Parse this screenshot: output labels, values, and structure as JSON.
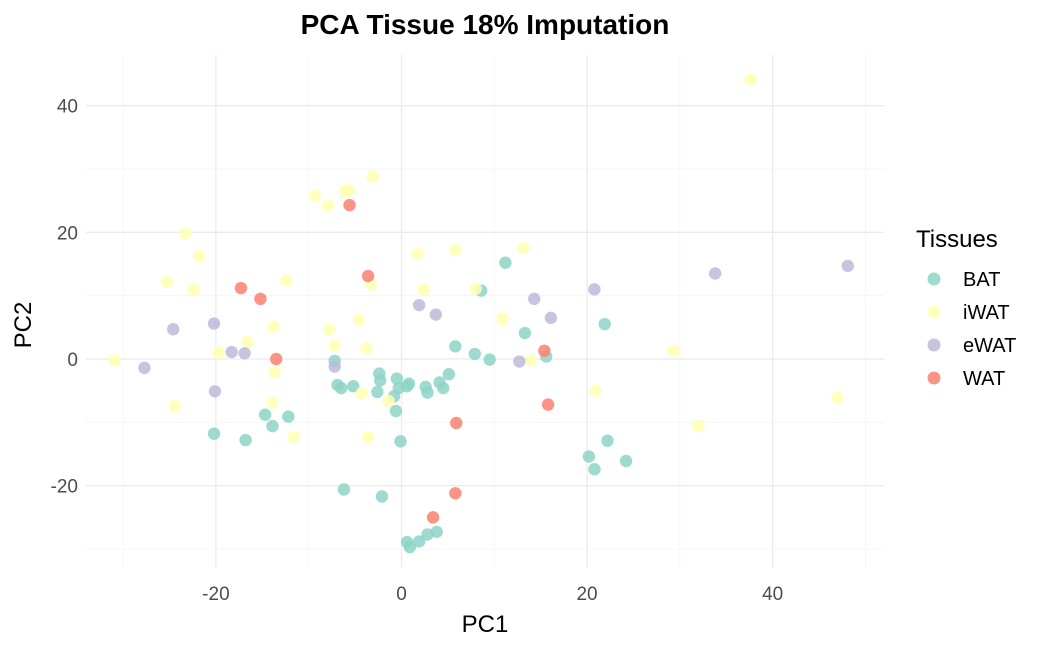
{
  "chart_data": {
    "type": "scatter",
    "title": "PCA Tissue 18% Imputation",
    "xlabel": "PC1",
    "ylabel": "PC2",
    "xlim": [
      -34,
      52
    ],
    "ylim": [
      -33,
      48
    ],
    "x_ticks": [
      -20,
      0,
      20,
      40
    ],
    "y_ticks": [
      -20,
      0,
      20,
      40
    ],
    "grid": true,
    "legend": {
      "title": "Tissues",
      "position": "right"
    },
    "series": [
      {
        "name": "BAT",
        "color": "#8dd3c7",
        "points": [
          [
            -20.2,
            -11.8
          ],
          [
            -16.8,
            -12.8
          ],
          [
            -14.7,
            -8.8
          ],
          [
            -13.9,
            -10.6
          ],
          [
            -12.2,
            -9.1
          ],
          [
            -7.2,
            -0.3
          ],
          [
            -6.9,
            -4.1
          ],
          [
            -6.5,
            -4.6
          ],
          [
            -5.2,
            -4.3
          ],
          [
            -2.4,
            -2.3
          ],
          [
            -2.3,
            -3.4
          ],
          [
            -2.6,
            -5.2
          ],
          [
            -0.8,
            -5.9
          ],
          [
            -0.6,
            -8.2
          ],
          [
            -0.5,
            -3.1
          ],
          [
            -0.3,
            -4.6
          ],
          [
            0.6,
            -4.3
          ],
          [
            0.8,
            -3.9
          ],
          [
            2.6,
            -4.4
          ],
          [
            2.8,
            -5.3
          ],
          [
            4.1,
            -3.7
          ],
          [
            4.5,
            -4.6
          ],
          [
            5.1,
            -2.4
          ],
          [
            5.8,
            2.0
          ],
          [
            7.9,
            0.8
          ],
          [
            9.5,
            -0.1
          ],
          [
            8.6,
            10.8
          ],
          [
            11.2,
            15.2
          ],
          [
            13.3,
            4.1
          ],
          [
            15.6,
            0.4
          ],
          [
            21.9,
            5.5
          ],
          [
            22.2,
            -12.9
          ],
          [
            20.2,
            -15.4
          ],
          [
            20.8,
            -17.4
          ],
          [
            24.2,
            -16.1
          ],
          [
            -0.1,
            -13.0
          ],
          [
            -6.2,
            -20.6
          ],
          [
            -2.1,
            -21.7
          ],
          [
            0.6,
            -28.9
          ],
          [
            0.9,
            -29.7
          ],
          [
            1.9,
            -28.8
          ],
          [
            2.8,
            -27.7
          ],
          [
            3.8,
            -27.3
          ]
        ]
      },
      {
        "name": "iWAT",
        "color": "#ffffb3",
        "points": [
          [
            -30.9,
            -0.2
          ],
          [
            -25.3,
            12.2
          ],
          [
            -24.4,
            -7.5
          ],
          [
            -23.3,
            19.8
          ],
          [
            -22.4,
            11.0
          ],
          [
            -21.8,
            16.3
          ],
          [
            -19.7,
            1.0
          ],
          [
            -16.6,
            2.7
          ],
          [
            -13.8,
            5.1
          ],
          [
            -13.7,
            -2.1
          ],
          [
            -13.9,
            -6.9
          ],
          [
            -12.4,
            12.4
          ],
          [
            -11.6,
            -12.3
          ],
          [
            -9.3,
            25.8
          ],
          [
            -7.9,
            24.2
          ],
          [
            -6.1,
            26.5
          ],
          [
            -5.7,
            26.6
          ],
          [
            -3.1,
            28.8
          ],
          [
            -7.8,
            4.7
          ],
          [
            -7.2,
            2.1
          ],
          [
            -4.6,
            6.2
          ],
          [
            -3.8,
            1.7
          ],
          [
            -4.3,
            -5.4
          ],
          [
            -3.3,
            11.8
          ],
          [
            -3.6,
            -12.4
          ],
          [
            -1.4,
            -6.6
          ],
          [
            1.8,
            16.6
          ],
          [
            2.4,
            11.0
          ],
          [
            5.8,
            17.2
          ],
          [
            8.0,
            11.1
          ],
          [
            10.9,
            6.3
          ],
          [
            13.1,
            17.5
          ],
          [
            13.9,
            -0.2
          ],
          [
            20.9,
            -5.0
          ],
          [
            29.3,
            1.3
          ],
          [
            32.0,
            -10.6
          ],
          [
            37.6,
            44.1
          ],
          [
            47.0,
            -6.1
          ]
        ]
      },
      {
        "name": "eWAT",
        "color": "#bebada",
        "points": [
          [
            -27.7,
            -1.4
          ],
          [
            -24.6,
            4.7
          ],
          [
            -20.2,
            5.6
          ],
          [
            -20.1,
            -5.1
          ],
          [
            -18.3,
            1.1
          ],
          [
            -16.9,
            0.9
          ],
          [
            -7.2,
            -1.2
          ],
          [
            1.9,
            8.5
          ],
          [
            3.7,
            7.0
          ],
          [
            12.7,
            -0.4
          ],
          [
            14.3,
            9.5
          ],
          [
            16.1,
            6.5
          ],
          [
            20.8,
            11.0
          ],
          [
            33.8,
            13.5
          ],
          [
            48.1,
            14.7
          ]
        ]
      },
      {
        "name": "WAT",
        "color": "#fb8072",
        "points": [
          [
            -17.3,
            11.2
          ],
          [
            -15.2,
            9.5
          ],
          [
            -13.5,
            0.0
          ],
          [
            -5.6,
            24.3
          ],
          [
            -3.6,
            13.1
          ],
          [
            5.9,
            -10.1
          ],
          [
            5.8,
            -21.2
          ],
          [
            3.4,
            -25.0
          ],
          [
            15.4,
            1.3
          ],
          [
            15.8,
            -7.2
          ]
        ]
      }
    ]
  }
}
